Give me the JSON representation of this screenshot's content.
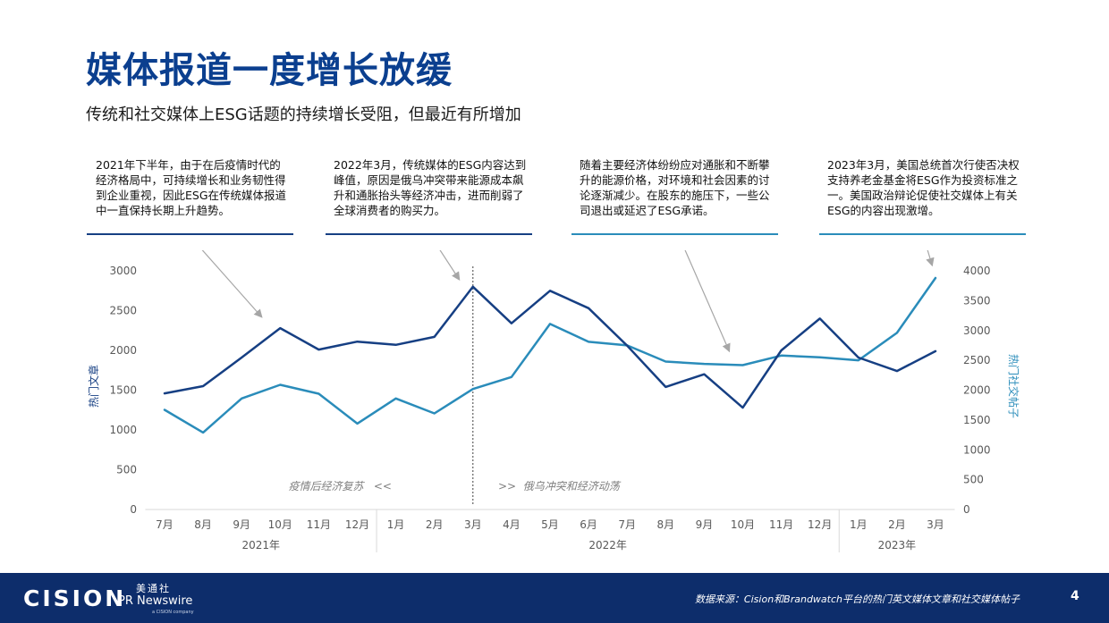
{
  "title": "媒体报道一度增长放缓",
  "subtitle": "传统和社交媒体上ESG话题的持续增长受阻，但最近有所增加",
  "annotations": [
    {
      "text": "2021年下半年，由于在后疫情时代的经济格局中，可持续增长和业务韧性得到企业重视，因此ESG在传统媒体报道中一直保持长期上升趋势。"
    },
    {
      "text": "2022年3月，传统媒体的ESG内容达到峰值，原因是俄乌冲突带来能源成本飙升和通胀抬头等经济冲击，进而削弱了全球消费者的购买力。"
    },
    {
      "text": "随着主要经济体纷纷应对通胀和不断攀升的能源价格，对环境和社会因素的讨论逐渐减少。在股东的施压下，一些公司退出或延迟了ESG承诺。"
    },
    {
      "text": "2023年3月，美国总统首次行使否决权支持养老金基金将ESG作为投资标准之一。美国政治辩论促使社交媒体上有关ESG的内容出现激增。"
    }
  ],
  "chart_data": {
    "type": "line",
    "categories": [
      "7月",
      "8月",
      "9月",
      "10月",
      "11月",
      "12月",
      "1月",
      "2月",
      "3月",
      "4月",
      "5月",
      "6月",
      "7月",
      "8月",
      "9月",
      "10月",
      "11月",
      "12月",
      "1月",
      "2月",
      "3月"
    ],
    "year_groups": [
      {
        "label": "2021年",
        "start": 0,
        "end": 5
      },
      {
        "label": "2022年",
        "start": 6,
        "end": 17
      },
      {
        "label": "2023年",
        "start": 18,
        "end": 20
      }
    ],
    "series": [
      {
        "name": "热门文章",
        "axis": "left",
        "color": "#163f83",
        "values": [
          1460,
          1550,
          1910,
          2280,
          2010,
          2110,
          2070,
          2170,
          2800,
          2340,
          2750,
          2530,
          2060,
          1540,
          1700,
          1280,
          2000,
          2400,
          1910,
          1740,
          1990
        ]
      },
      {
        "name": "热门社交帖子",
        "axis": "right",
        "color": "#2a8cba",
        "values": [
          1670,
          1290,
          1860,
          2090,
          1940,
          1440,
          1860,
          1610,
          2020,
          2220,
          3110,
          2810,
          2750,
          2480,
          2440,
          2420,
          2580,
          2550,
          2500,
          2960,
          3880
        ]
      }
    ],
    "ylabel_left": "热门文章",
    "ylabel_right": "热门社交帖子",
    "ylim_left": [
      0,
      3000
    ],
    "ylim_right": [
      0,
      4000
    ],
    "yticks_left": [
      0,
      500,
      1000,
      1500,
      2000,
      2500,
      3000
    ],
    "yticks_right": [
      0,
      500,
      1000,
      1500,
      2000,
      2500,
      3000,
      3500,
      4000
    ],
    "divider_after_index": 8,
    "region_left": "疫情后经济复苏   <<",
    "region_right": ">>  俄乌冲突和经济动荡",
    "grid": false
  },
  "footer": {
    "logo": "CISION",
    "logo_cn": "美通社",
    "logo_prn": "PR Newswire",
    "logo_small": "a CISION company",
    "source": "数据来源：Cision和Brandwatch平台的热门英文媒体文章和社交媒体帖子",
    "page": "4"
  }
}
